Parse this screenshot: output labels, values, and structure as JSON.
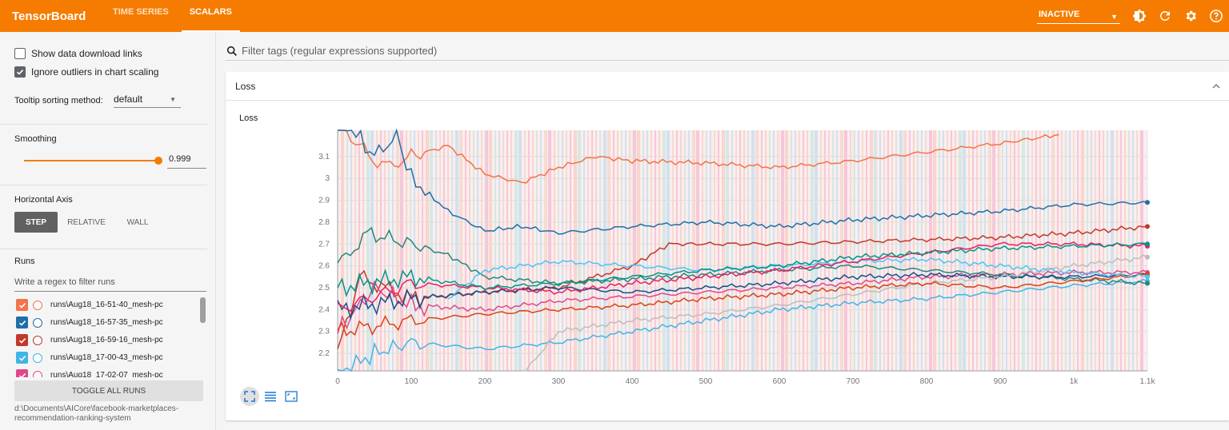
{
  "app": {
    "title": "TensorBoard"
  },
  "nav": {
    "tabs": [
      "TIME SERIES",
      "SCALARS"
    ],
    "active": 1
  },
  "topbar": {
    "reload_status": "INACTIVE"
  },
  "sidebar": {
    "show_download_label": "Show data download links",
    "show_download_checked": false,
    "ignore_outliers_label": "Ignore outliers in chart scaling",
    "ignore_outliers_checked": true,
    "tooltip_sort_label": "Tooltip sorting method:",
    "tooltip_sort_value": "default",
    "smoothing_label": "Smoothing",
    "smoothing_value": "0.999",
    "smoothing_fraction": 0.999,
    "horizontal_axis_label": "Horizontal Axis",
    "axis_options": [
      "STEP",
      "RELATIVE",
      "WALL"
    ],
    "axis_active": 0,
    "runs_label": "Runs",
    "runs_filter_placeholder": "Write a regex to filter runs",
    "runs": [
      {
        "name": "runs\\Aug18_16-51-40_mesh-pc",
        "color": "#f4734a",
        "checked": true
      },
      {
        "name": "runs\\Aug18_16-57-35_mesh-pc",
        "color": "#1f6fa8",
        "checked": true
      },
      {
        "name": "runs\\Aug18_16-59-16_mesh-pc",
        "color": "#c0392b",
        "checked": true
      },
      {
        "name": "runs\\Aug18_17-00-43_mesh-pc",
        "color": "#42b4e6",
        "checked": true
      },
      {
        "name": "runs\\Aug18_17-02-07_mesh-pc",
        "color": "#e0488b",
        "checked": true
      }
    ],
    "toggle_all_label": "TOGGLE ALL RUNS",
    "logdir": "d:\\Documents\\AICore\\facebook-marketplaces-recommendation-ranking-system"
  },
  "main": {
    "filter_placeholder": "Filter tags (regular expressions supported)",
    "card_title": "Loss"
  },
  "chart_data": {
    "type": "line",
    "title": "Loss",
    "xlabel": "",
    "ylabel": "",
    "xlim": [
      0,
      1100
    ],
    "ylim": [
      2.12,
      3.22
    ],
    "x_ticks": [
      0,
      100,
      200,
      300,
      400,
      500,
      600,
      700,
      800,
      900,
      1000,
      1100
    ],
    "x_tick_labels": [
      "0",
      "100",
      "200",
      "300",
      "400",
      "500",
      "600",
      "700",
      "800",
      "900",
      "1k",
      "1.1k"
    ],
    "y_ticks": [
      2.2,
      2.3,
      2.4,
      2.5,
      2.6,
      2.7,
      2.8,
      2.9,
      3.0,
      3.1
    ],
    "y_tick_labels": [
      "2.2",
      "2.3",
      "2.4",
      "2.5",
      "2.6",
      "2.7",
      "2.8",
      "2.9",
      "3",
      "3.1"
    ],
    "grid": true,
    "series": [
      {
        "color": "#f4734a",
        "x": [
          0,
          60,
          100,
          150,
          200,
          250,
          300,
          350,
          400,
          500,
          600,
          700,
          800,
          900,
          980
        ],
        "y": [
          3.25,
          3.05,
          3.1,
          3.15,
          3.02,
          2.98,
          3.05,
          3.1,
          3.08,
          3.07,
          3.05,
          3.08,
          3.12,
          3.16,
          3.2
        ]
      },
      {
        "color": "#1f6fa8",
        "x": [
          0,
          50,
          80,
          100,
          150,
          200,
          250,
          300,
          400,
          500,
          600,
          700,
          800,
          900,
          1000,
          1100
        ],
        "y": [
          3.3,
          3.1,
          3.2,
          3.0,
          2.85,
          2.76,
          2.78,
          2.75,
          2.78,
          2.8,
          2.78,
          2.81,
          2.83,
          2.85,
          2.88,
          2.89
        ]
      },
      {
        "color": "#c0392b",
        "x": [
          0,
          30,
          100,
          200,
          300,
          400,
          450,
          500,
          600,
          700,
          800,
          900,
          1000,
          1100
        ],
        "y": [
          2.2,
          2.55,
          2.45,
          2.48,
          2.5,
          2.6,
          2.7,
          2.7,
          2.7,
          2.71,
          2.72,
          2.73,
          2.75,
          2.78
        ]
      },
      {
        "color": "#42b4e6",
        "x": [
          0,
          50,
          100,
          200,
          300,
          400,
          500,
          600,
          700,
          800,
          900,
          1000,
          1100
        ],
        "y": [
          2.1,
          2.2,
          2.25,
          2.22,
          2.25,
          2.3,
          2.35,
          2.4,
          2.43,
          2.45,
          2.48,
          2.51,
          2.53
        ]
      },
      {
        "color": "#e0488b",
        "x": [
          0,
          50,
          100,
          200,
          300,
          400,
          500,
          600,
          700,
          800,
          900,
          1000,
          1100
        ],
        "y": [
          2.3,
          2.5,
          2.42,
          2.4,
          2.44,
          2.46,
          2.48,
          2.5,
          2.52,
          2.55,
          2.56,
          2.57,
          2.57
        ]
      },
      {
        "color": "#26867b",
        "x": [
          0,
          40,
          100,
          150,
          200,
          300,
          400,
          500,
          600,
          700,
          800,
          900,
          1000,
          1100
        ],
        "y": [
          2.6,
          2.75,
          2.7,
          2.65,
          2.55,
          2.52,
          2.54,
          2.56,
          2.58,
          2.6,
          2.58,
          2.56,
          2.54,
          2.52
        ]
      },
      {
        "color": "#1a4e8a",
        "x": [
          0,
          100,
          200,
          300,
          400,
          500,
          600,
          700,
          800,
          900,
          1000,
          1100
        ],
        "y": [
          2.4,
          2.45,
          2.48,
          2.5,
          2.48,
          2.5,
          2.52,
          2.55,
          2.56,
          2.55,
          2.55,
          2.56
        ]
      },
      {
        "color": "#bdbdbd",
        "x": [
          250,
          300,
          400,
          500,
          600,
          700,
          800,
          900,
          1000,
          1100
        ],
        "y": [
          2.1,
          2.3,
          2.35,
          2.38,
          2.42,
          2.47,
          2.52,
          2.55,
          2.6,
          2.64
        ]
      },
      {
        "color": "#d84315",
        "x": [
          0,
          100,
          200,
          300,
          400,
          500,
          600,
          700,
          800,
          900,
          1000,
          1100
        ],
        "y": [
          2.3,
          2.35,
          2.38,
          2.4,
          2.42,
          2.45,
          2.47,
          2.5,
          2.52,
          2.5,
          2.53,
          2.56
        ]
      },
      {
        "color": "#4fc3f7",
        "x": [
          150,
          200,
          300,
          400,
          500,
          600,
          700,
          800,
          900,
          1000,
          1100
        ],
        "y": [
          2.45,
          2.58,
          2.62,
          2.6,
          2.58,
          2.6,
          2.62,
          2.63,
          2.6,
          2.57,
          2.55
        ]
      },
      {
        "color": "#e91e63",
        "x": [
          0,
          100,
          200,
          300,
          400,
          500,
          600,
          700,
          800,
          900,
          1000,
          1100
        ],
        "y": [
          2.4,
          2.52,
          2.5,
          2.48,
          2.52,
          2.55,
          2.58,
          2.62,
          2.66,
          2.7,
          2.7,
          2.69
        ]
      },
      {
        "color": "#009688",
        "x": [
          0,
          100,
          200,
          300,
          400,
          500,
          600,
          700,
          800,
          900,
          1000,
          1100
        ],
        "y": [
          2.5,
          2.55,
          2.5,
          2.52,
          2.55,
          2.58,
          2.6,
          2.64,
          2.66,
          2.68,
          2.69,
          2.7
        ]
      }
    ]
  }
}
